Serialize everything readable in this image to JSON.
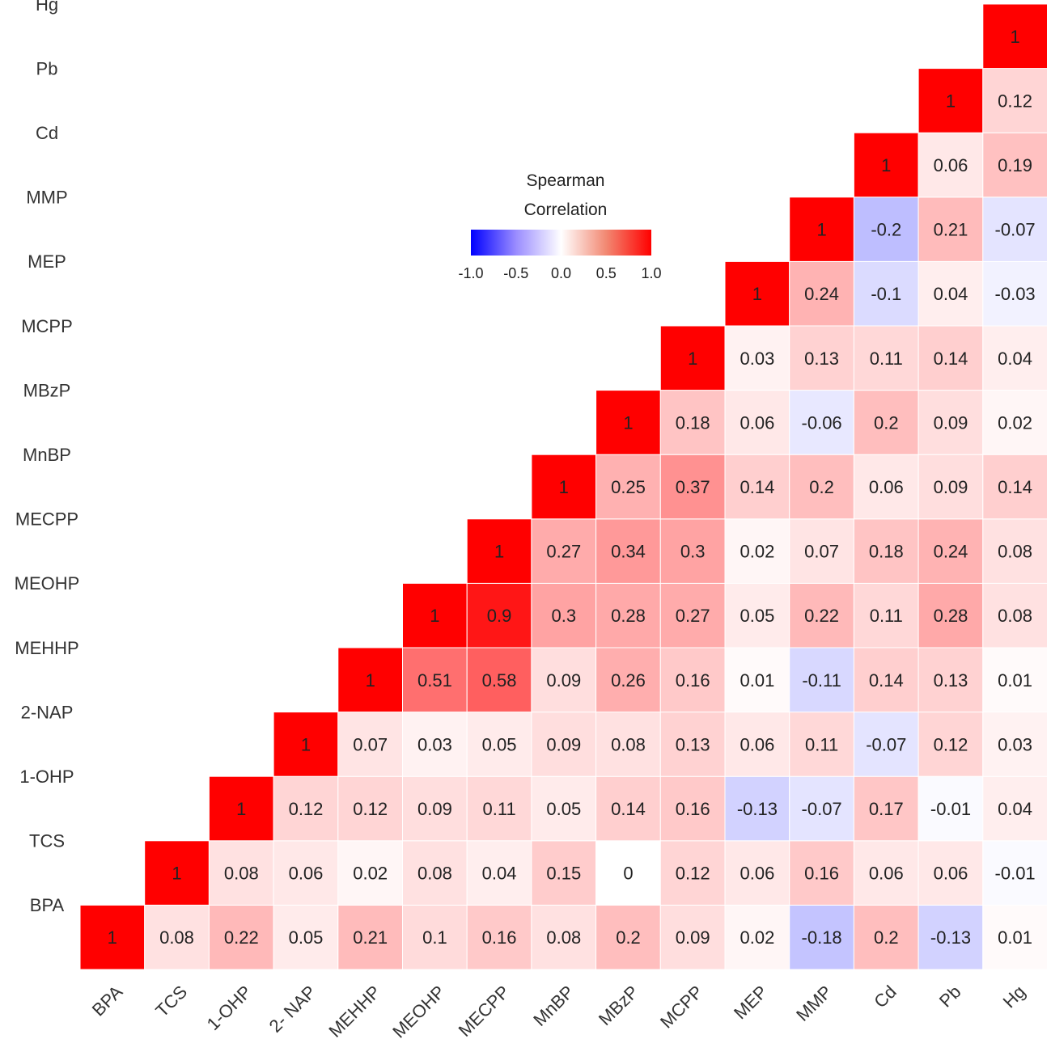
{
  "chart_data": {
    "type": "heatmap",
    "variables": [
      "BPA",
      "TCS",
      "1-OHP",
      "2-NAP",
      "MEHHP",
      "MEOHP",
      "MECPP",
      "MnBP",
      "MBzP",
      "MCPP",
      "MEP",
      "MMP",
      "Cd",
      "Pb",
      "Hg"
    ],
    "x_tick_labels": [
      "BPA",
      "TCS",
      "1-OHP",
      "2- NAP",
      "MEHHP",
      "MEOHP",
      "MECPP",
      "MnBP",
      "MBzP",
      "MCPP",
      "MEP",
      "MMP",
      "Cd",
      "Pb",
      "Hg"
    ],
    "y_tick_labels": [
      "BPA",
      "TCS",
      "1-OHP",
      "2-NAP",
      "MEHHP",
      "MEOHP",
      "MECPP",
      "MnBP",
      "MBzP",
      "MCPP",
      "MEP",
      "MMP",
      "Cd",
      "Pb",
      "Hg"
    ],
    "triangle": "upper (cells with column index >= row index)",
    "values": [
      [
        "1",
        "0.08",
        "0.22",
        "0.05",
        "0.21",
        "0.1",
        "0.16",
        "0.08",
        "0.2",
        "0.09",
        "0.02",
        "-0.18",
        "0.2",
        "-0.13",
        "0.01"
      ],
      [
        null,
        "1",
        "0.08",
        "0.06",
        "0.02",
        "0.08",
        "0.04",
        "0.15",
        "0",
        "0.12",
        "0.06",
        "0.16",
        "0.06",
        "0.06",
        "-0.01"
      ],
      [
        null,
        null,
        "1",
        "0.12",
        "0.12",
        "0.09",
        "0.11",
        "0.05",
        "0.14",
        "0.16",
        "-0.13",
        "-0.07",
        "0.17",
        "-0.01",
        "0.04"
      ],
      [
        null,
        null,
        null,
        "1",
        "0.07",
        "0.03",
        "0.05",
        "0.09",
        "0.08",
        "0.13",
        "0.06",
        "0.11",
        "-0.07",
        "0.12",
        "0.03"
      ],
      [
        null,
        null,
        null,
        null,
        "1",
        "0.51",
        "0.58",
        "0.09",
        "0.26",
        "0.16",
        "0.01",
        "-0.11",
        "0.14",
        "0.13",
        "0.01"
      ],
      [
        null,
        null,
        null,
        null,
        null,
        "1",
        "0.9",
        "0.3",
        "0.28",
        "0.27",
        "0.05",
        "0.22",
        "0.11",
        "0.28",
        "0.08"
      ],
      [
        null,
        null,
        null,
        null,
        null,
        null,
        "1",
        "0.27",
        "0.34",
        "0.3",
        "0.02",
        "0.07",
        "0.18",
        "0.24",
        "0.08"
      ],
      [
        null,
        null,
        null,
        null,
        null,
        null,
        null,
        "1",
        "0.25",
        "0.37",
        "0.14",
        "0.2",
        "0.06",
        "0.09",
        "0.14"
      ],
      [
        null,
        null,
        null,
        null,
        null,
        null,
        null,
        null,
        "1",
        "0.18",
        "0.06",
        "-0.06",
        "0.2",
        "0.09",
        "0.02"
      ],
      [
        null,
        null,
        null,
        null,
        null,
        null,
        null,
        null,
        null,
        "1",
        "0.03",
        "0.13",
        "0.11",
        "0.14",
        "0.04"
      ],
      [
        null,
        null,
        null,
        null,
        null,
        null,
        null,
        null,
        null,
        null,
        "1",
        "0.24",
        "-0.1",
        "0.04",
        "-0.03"
      ],
      [
        null,
        null,
        null,
        null,
        null,
        null,
        null,
        null,
        null,
        null,
        null,
        "1",
        "-0.2",
        "0.21",
        "-0.07"
      ],
      [
        null,
        null,
        null,
        null,
        null,
        null,
        null,
        null,
        null,
        null,
        null,
        null,
        "1",
        "0.06",
        "0.19"
      ],
      [
        null,
        null,
        null,
        null,
        null,
        null,
        null,
        null,
        null,
        null,
        null,
        null,
        null,
        "1",
        "0.12"
      ],
      [
        null,
        null,
        null,
        null,
        null,
        null,
        null,
        null,
        null,
        null,
        null,
        null,
        null,
        null,
        "1"
      ]
    ],
    "legend": {
      "title_line1": "Spearman",
      "title_line2": "Correlation",
      "ticks": [
        "-1.0",
        "-0.5",
        "0.0",
        "0.5",
        "1.0"
      ],
      "range": [
        -1.0,
        1.0
      ],
      "placement": "top-center"
    },
    "colors": {
      "negative": "#0000ff",
      "zero": "#ffffff",
      "positive": "#ff0000",
      "cell_border": "#ffffff"
    }
  }
}
